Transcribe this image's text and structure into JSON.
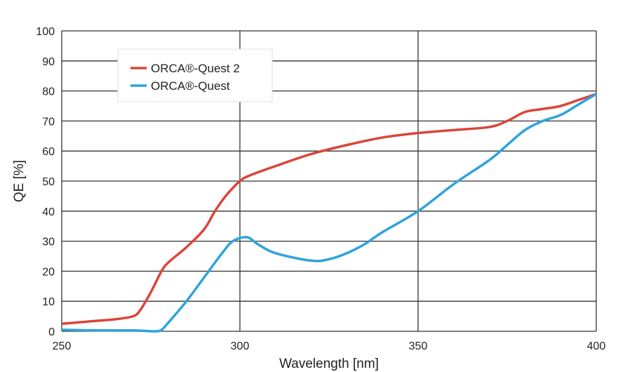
{
  "chart_data": {
    "type": "line",
    "title": "",
    "xlabel": "Wavelength [nm]",
    "ylabel": "QE [%]",
    "xlim": [
      250,
      400
    ],
    "ylim": [
      0,
      100
    ],
    "xticks": [
      250,
      300,
      350,
      400
    ],
    "yticks": [
      0,
      10,
      20,
      30,
      40,
      50,
      60,
      70,
      80,
      90,
      100
    ],
    "grid": true,
    "legend_position": "top-left",
    "series": [
      {
        "name": "ORCA®-Quest 2",
        "color": "#d9463b",
        "x": [
          250,
          255,
          260,
          265,
          270,
          272,
          275,
          278,
          280,
          285,
          290,
          293,
          296,
          300,
          303,
          310,
          320,
          330,
          340,
          350,
          360,
          370,
          375,
          380,
          385,
          390,
          395,
          400
        ],
        "y": [
          2.5,
          3,
          3.5,
          4,
          5,
          7,
          13,
          20,
          23,
          28,
          34,
          40,
          45,
          50,
          52,
          55,
          59,
          62,
          64.5,
          66,
          67,
          68,
          70,
          73,
          74,
          75,
          77,
          79
        ]
      },
      {
        "name": "ORCA®-Quest",
        "color": "#2fa3dc",
        "x": [
          250,
          260,
          270,
          276,
          278,
          280,
          285,
          290,
          295,
          298,
          302,
          305,
          310,
          320,
          325,
          330,
          335,
          340,
          350,
          360,
          370,
          375,
          380,
          385,
          390,
          395,
          400
        ],
        "y": [
          0.5,
          0.3,
          0.3,
          0,
          0.5,
          3,
          10,
          18,
          26,
          30,
          31.3,
          29,
          26,
          23.5,
          24,
          26,
          29,
          33,
          40,
          49,
          57,
          62,
          67,
          70,
          72,
          75.5,
          79
        ]
      }
    ]
  }
}
